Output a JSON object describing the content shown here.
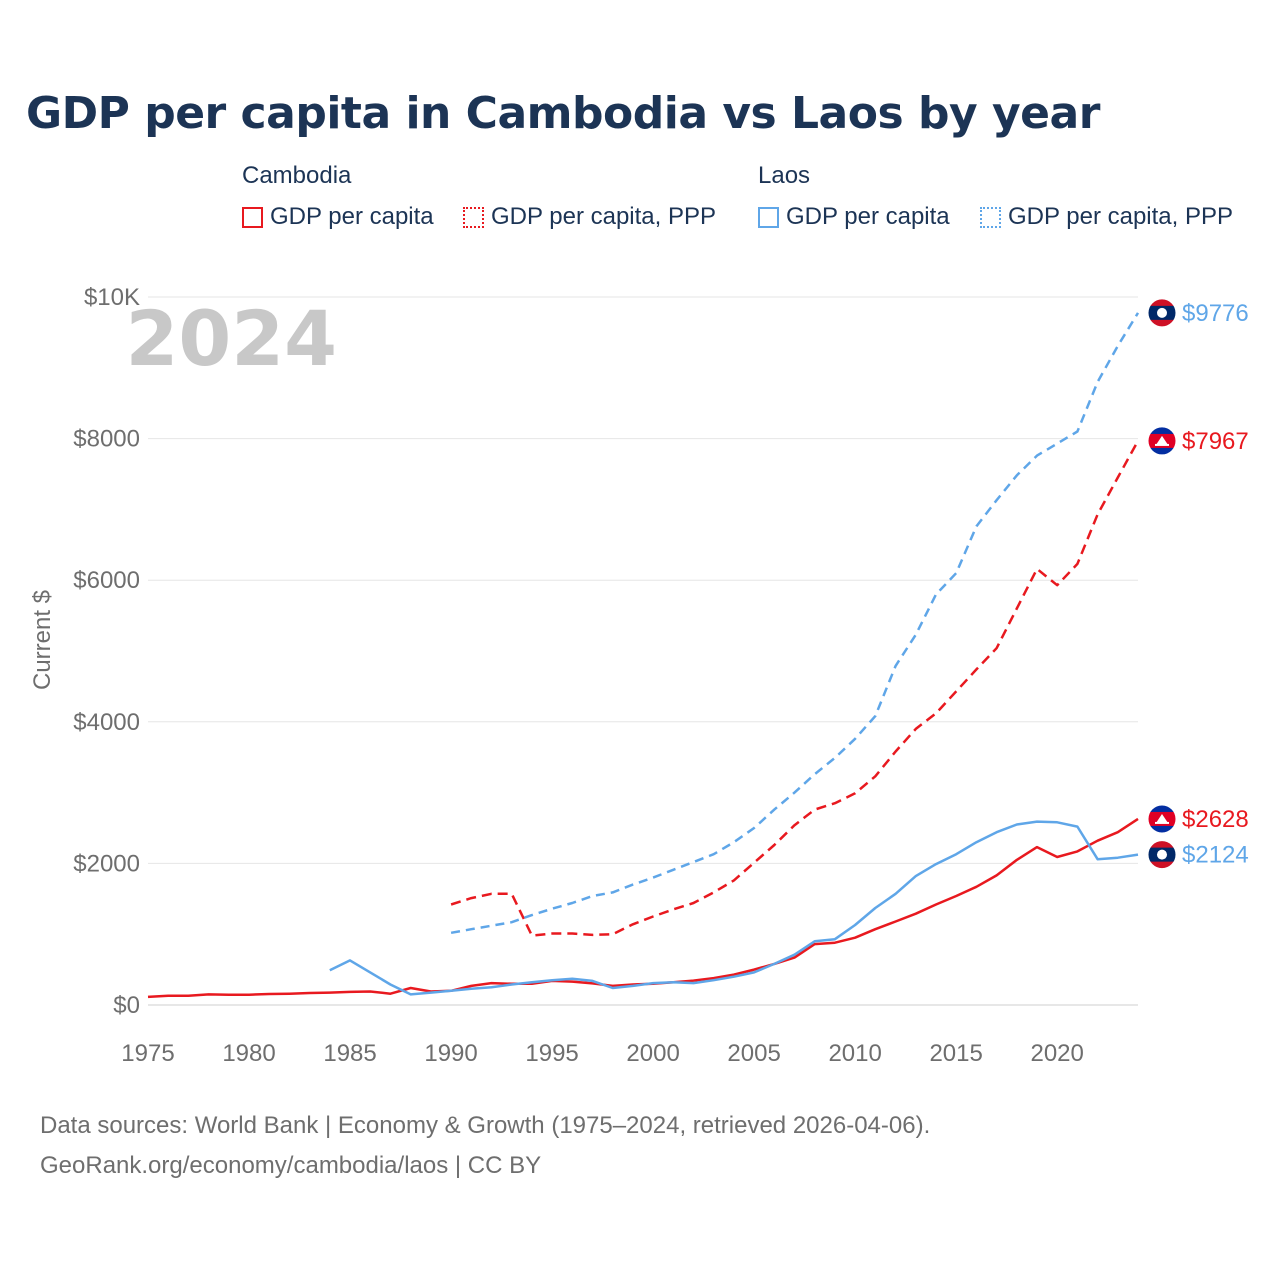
{
  "chart_data": {
    "type": "line",
    "title": "GDP per capita in Cambodia vs Laos by year",
    "ylabel": "Current $",
    "xlabel": "",
    "xlim": [
      1975,
      2024
    ],
    "ylim": [
      0,
      10000
    ],
    "year_watermark": "2024",
    "x_ticks": [
      {
        "value": 1975,
        "label": "1975"
      },
      {
        "value": 1980,
        "label": "1980"
      },
      {
        "value": 1985,
        "label": "1985"
      },
      {
        "value": 1990,
        "label": "1990"
      },
      {
        "value": 1995,
        "label": "1995"
      },
      {
        "value": 2000,
        "label": "2000"
      },
      {
        "value": 2005,
        "label": "2005"
      },
      {
        "value": 2010,
        "label": "2010"
      },
      {
        "value": 2015,
        "label": "2015"
      },
      {
        "value": 2020,
        "label": "2020"
      }
    ],
    "y_ticks": [
      {
        "value": 0,
        "label": "$0"
      },
      {
        "value": 2000,
        "label": "$2000"
      },
      {
        "value": 4000,
        "label": "$4000"
      },
      {
        "value": 6000,
        "label": "$6000"
      },
      {
        "value": 8000,
        "label": "$8000"
      },
      {
        "value": 10000,
        "label": "$10K"
      }
    ],
    "legend": {
      "groups": [
        {
          "country": "Cambodia",
          "items": [
            "GDP per capita",
            "GDP per capita, PPP"
          ]
        },
        {
          "country": "Laos",
          "items": [
            "GDP per capita",
            "GDP per capita, PPP"
          ]
        }
      ]
    },
    "series": [
      {
        "name": "Cambodia GDP per capita",
        "country": "Cambodia",
        "color": "#e8191f",
        "style": "solid",
        "flag": "cambodia-flag",
        "end_label": "$2628",
        "points": [
          [
            1975,
            115
          ],
          [
            1976,
            130
          ],
          [
            1977,
            130
          ],
          [
            1978,
            150
          ],
          [
            1979,
            145
          ],
          [
            1980,
            145
          ],
          [
            1981,
            155
          ],
          [
            1982,
            160
          ],
          [
            1983,
            170
          ],
          [
            1984,
            175
          ],
          [
            1985,
            185
          ],
          [
            1986,
            190
          ],
          [
            1987,
            160
          ],
          [
            1988,
            240
          ],
          [
            1989,
            190
          ],
          [
            1990,
            200
          ],
          [
            1991,
            270
          ],
          [
            1992,
            310
          ],
          [
            1993,
            300
          ],
          [
            1994,
            300
          ],
          [
            1995,
            340
          ],
          [
            1996,
            330
          ],
          [
            1997,
            305
          ],
          [
            1998,
            270
          ],
          [
            1999,
            290
          ],
          [
            2000,
            300
          ],
          [
            2001,
            320
          ],
          [
            2002,
            345
          ],
          [
            2003,
            380
          ],
          [
            2004,
            430
          ],
          [
            2005,
            500
          ],
          [
            2006,
            580
          ],
          [
            2007,
            670
          ],
          [
            2008,
            860
          ],
          [
            2009,
            880
          ],
          [
            2010,
            950
          ],
          [
            2011,
            1070
          ],
          [
            2012,
            1180
          ],
          [
            2013,
            1290
          ],
          [
            2014,
            1420
          ],
          [
            2015,
            1540
          ],
          [
            2016,
            1670
          ],
          [
            2017,
            1830
          ],
          [
            2018,
            2050
          ],
          [
            2019,
            2230
          ],
          [
            2020,
            2090
          ],
          [
            2021,
            2170
          ],
          [
            2022,
            2320
          ],
          [
            2023,
            2440
          ],
          [
            2024,
            2628
          ]
        ]
      },
      {
        "name": "Cambodia GDP per capita, PPP",
        "country": "Cambodia",
        "color": "#e8191f",
        "style": "dashed",
        "flag": "cambodia-flag",
        "end_label": "$7967",
        "points": [
          [
            1990,
            1420
          ],
          [
            1991,
            1510
          ],
          [
            1992,
            1570
          ],
          [
            1993,
            1570
          ],
          [
            1994,
            980
          ],
          [
            1995,
            1010
          ],
          [
            1996,
            1010
          ],
          [
            1997,
            990
          ],
          [
            1998,
            1000
          ],
          [
            1999,
            1140
          ],
          [
            2000,
            1250
          ],
          [
            2001,
            1350
          ],
          [
            2002,
            1440
          ],
          [
            2003,
            1590
          ],
          [
            2004,
            1760
          ],
          [
            2005,
            2010
          ],
          [
            2006,
            2260
          ],
          [
            2007,
            2540
          ],
          [
            2008,
            2760
          ],
          [
            2009,
            2850
          ],
          [
            2010,
            2990
          ],
          [
            2011,
            3230
          ],
          [
            2012,
            3580
          ],
          [
            2013,
            3900
          ],
          [
            2014,
            4120
          ],
          [
            2015,
            4430
          ],
          [
            2016,
            4740
          ],
          [
            2017,
            5040
          ],
          [
            2018,
            5600
          ],
          [
            2019,
            6160
          ],
          [
            2020,
            5930
          ],
          [
            2021,
            6230
          ],
          [
            2022,
            6930
          ],
          [
            2023,
            7450
          ],
          [
            2024,
            7967
          ]
        ]
      },
      {
        "name": "Laos GDP per capita",
        "country": "Laos",
        "color": "#5fa6e8",
        "style": "solid",
        "flag": "laos-flag",
        "end_label": "$2124",
        "points": [
          [
            1984,
            490
          ],
          [
            1985,
            630
          ],
          [
            1986,
            460
          ],
          [
            1987,
            290
          ],
          [
            1988,
            150
          ],
          [
            1989,
            175
          ],
          [
            1990,
            200
          ],
          [
            1991,
            230
          ],
          [
            1992,
            250
          ],
          [
            1993,
            290
          ],
          [
            1994,
            320
          ],
          [
            1995,
            350
          ],
          [
            1996,
            370
          ],
          [
            1997,
            340
          ],
          [
            1998,
            240
          ],
          [
            1999,
            270
          ],
          [
            2000,
            310
          ],
          [
            2001,
            320
          ],
          [
            2002,
            310
          ],
          [
            2003,
            350
          ],
          [
            2004,
            400
          ],
          [
            2005,
            460
          ],
          [
            2006,
            580
          ],
          [
            2007,
            710
          ],
          [
            2008,
            900
          ],
          [
            2009,
            930
          ],
          [
            2010,
            1130
          ],
          [
            2011,
            1370
          ],
          [
            2012,
            1570
          ],
          [
            2013,
            1820
          ],
          [
            2014,
            1990
          ],
          [
            2015,
            2130
          ],
          [
            2016,
            2300
          ],
          [
            2017,
            2440
          ],
          [
            2018,
            2550
          ],
          [
            2019,
            2590
          ],
          [
            2020,
            2580
          ],
          [
            2021,
            2520
          ],
          [
            2022,
            2060
          ],
          [
            2023,
            2080
          ],
          [
            2024,
            2124
          ]
        ]
      },
      {
        "name": "Laos GDP per capita, PPP",
        "country": "Laos",
        "color": "#5fa6e8",
        "style": "dotted-dash",
        "flag": "laos-flag",
        "end_label": "$9776",
        "points": [
          [
            1990,
            1020
          ],
          [
            1991,
            1070
          ],
          [
            1992,
            1120
          ],
          [
            1993,
            1170
          ],
          [
            1994,
            1270
          ],
          [
            1995,
            1360
          ],
          [
            1996,
            1440
          ],
          [
            1997,
            1540
          ],
          [
            1998,
            1590
          ],
          [
            1999,
            1700
          ],
          [
            2000,
            1800
          ],
          [
            2001,
            1910
          ],
          [
            2002,
            2020
          ],
          [
            2003,
            2130
          ],
          [
            2004,
            2300
          ],
          [
            2005,
            2500
          ],
          [
            2006,
            2760
          ],
          [
            2007,
            3000
          ],
          [
            2008,
            3260
          ],
          [
            2009,
            3490
          ],
          [
            2010,
            3760
          ],
          [
            2011,
            4080
          ],
          [
            2012,
            4790
          ],
          [
            2013,
            5230
          ],
          [
            2014,
            5800
          ],
          [
            2015,
            6100
          ],
          [
            2016,
            6760
          ],
          [
            2017,
            7130
          ],
          [
            2018,
            7480
          ],
          [
            2019,
            7760
          ],
          [
            2020,
            7930
          ],
          [
            2021,
            8100
          ],
          [
            2022,
            8800
          ],
          [
            2023,
            9310
          ],
          [
            2024,
            9776
          ]
        ]
      }
    ]
  },
  "footer": {
    "line1": "Data sources: World Bank | Economy & Growth (1975–2024, retrieved 2026-04-06).",
    "line2": "GeoRank.org/economy/cambodia/laos | CC BY"
  },
  "colors": {
    "cambodia": "#e8191f",
    "laos": "#5fa6e8",
    "title": "#1c3455",
    "grid": "#e6e6e6",
    "axis_text": "#6e6e6e"
  }
}
